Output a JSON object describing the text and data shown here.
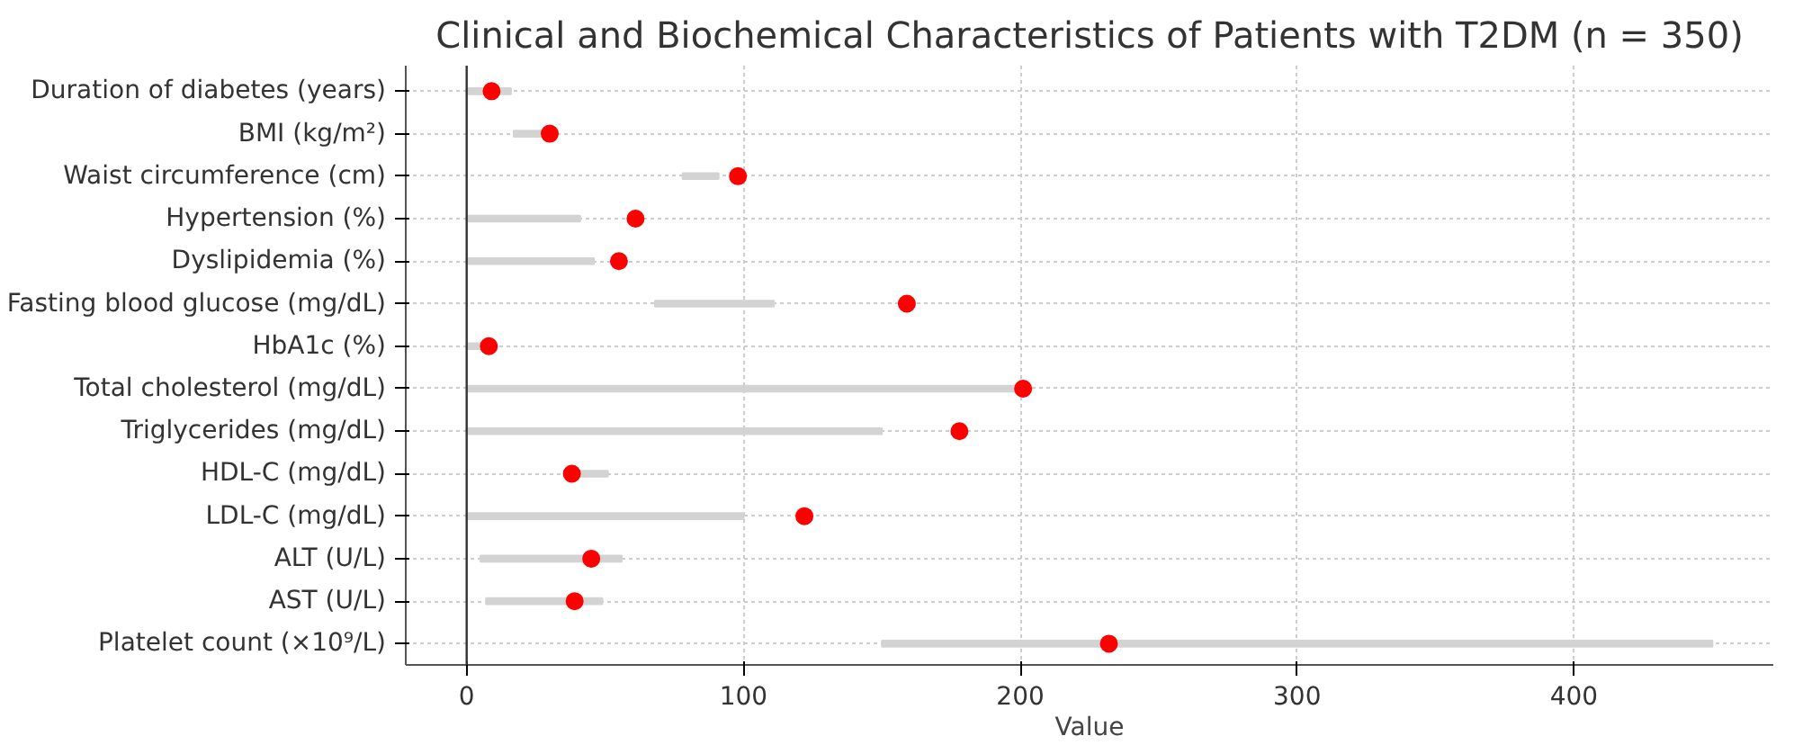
{
  "chart_data": {
    "type": "bar",
    "orientation": "horizontal",
    "title": "Clinical and Biochemical Characteristics of Patients with T2DM (n = 350)",
    "xlabel": "Value",
    "categories": [
      "Duration of diabetes (years)",
      "BMI (kg/m²)",
      "Waist circumference (cm)",
      "Hypertension (%)",
      "Dyslipidemia (%)",
      "Fasting blood glucose (mg/dL)",
      "HbA1c (%)",
      "Total cholesterol (mg/dL)",
      "Triglycerides (mg/dL)",
      "HDL-C (mg/dL)",
      "LDL-C (mg/dL)",
      "ALT (U/L)",
      "AST (U/L)",
      "Platelet count (×10⁹/L)"
    ],
    "series": [
      {
        "color": "#d3d3d3",
        "base": [
          0,
          17,
          78,
          0,
          0,
          68,
          0,
          0,
          0,
          40,
          0,
          5,
          7,
          150
        ],
        "values": [
          16,
          10,
          13,
          41,
          46,
          43,
          6,
          200,
          150,
          11,
          100,
          51,
          42,
          300
        ]
      },
      {
        "type": "scatter",
        "color": "#ff0000",
        "marker": "circle",
        "values": [
          9,
          30,
          98,
          61,
          55,
          159,
          8,
          201,
          178,
          38,
          122,
          45,
          39,
          232
        ]
      }
    ],
    "xlim": [
      -22,
      472
    ],
    "xticks": [
      0,
      100,
      200,
      300,
      400
    ],
    "grid": true,
    "ref_lines": [
      {
        "axis": "x",
        "value": 0,
        "color": "#333333"
      }
    ]
  }
}
